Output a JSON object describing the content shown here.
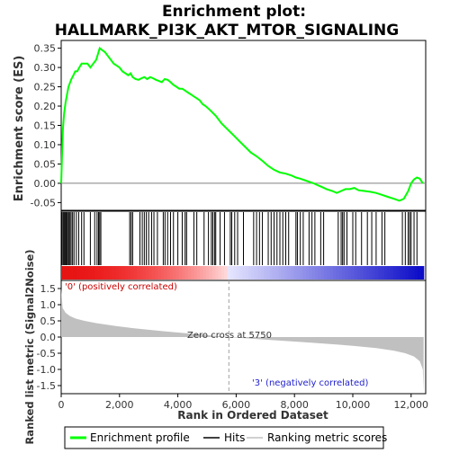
{
  "chart_data": {
    "type": "line",
    "title_line1": "Enrichment plot:",
    "title_line2": "HALLMARK_PI3K_AKT_MTOR_SIGNALING",
    "top_panel": {
      "ylabel": "Enrichment score (ES)",
      "ylim": [
        -0.07,
        0.37
      ],
      "yticks": [
        "0.35",
        "0.30",
        "0.25",
        "0.20",
        "0.15",
        "0.10",
        "0.05",
        "0.00",
        "-0.05"
      ],
      "ytick_values": [
        0.35,
        0.3,
        0.25,
        0.2,
        0.15,
        0.1,
        0.05,
        0.0,
        -0.05
      ],
      "series": [
        {
          "name": "Enrichment profile",
          "color": "#00ff00",
          "x": [
            0,
            30,
            60,
            100,
            150,
            200,
            250,
            300,
            350,
            420,
            480,
            550,
            620,
            700,
            800,
            900,
            1000,
            1100,
            1200,
            1280,
            1320,
            1400,
            1500,
            1600,
            1700,
            1800,
            1900,
            2000,
            2100,
            2200,
            2300,
            2380,
            2450,
            2550,
            2650,
            2750,
            2850,
            2950,
            3050,
            3150,
            3250,
            3350,
            3450,
            3550,
            3650,
            3750,
            3850,
            3950,
            4050,
            4150,
            4250,
            4350,
            4450,
            4550,
            4650,
            4750,
            4850,
            4950,
            5100,
            5300,
            5500,
            5700,
            5900,
            6100,
            6300,
            6500,
            6700,
            6900,
            7100,
            7300,
            7500,
            7700,
            7900,
            8050,
            8200,
            8350,
            8500,
            8650,
            8800,
            8950,
            9100,
            9300,
            9450,
            9600,
            9750,
            9900,
            10050,
            10200,
            10400,
            10600,
            10800,
            11000,
            11200,
            11400,
            11600,
            11750,
            11900,
            12000,
            12100,
            12200,
            12300,
            12400
          ],
          "y": [
            0.0,
            0.08,
            0.14,
            0.18,
            0.21,
            0.23,
            0.25,
            0.26,
            0.27,
            0.28,
            0.29,
            0.29,
            0.3,
            0.31,
            0.31,
            0.31,
            0.3,
            0.31,
            0.32,
            0.34,
            0.35,
            0.345,
            0.34,
            0.33,
            0.32,
            0.31,
            0.305,
            0.3,
            0.29,
            0.285,
            0.28,
            0.285,
            0.275,
            0.27,
            0.268,
            0.272,
            0.275,
            0.27,
            0.275,
            0.272,
            0.268,
            0.265,
            0.262,
            0.27,
            0.268,
            0.262,
            0.255,
            0.25,
            0.245,
            0.245,
            0.24,
            0.235,
            0.23,
            0.225,
            0.22,
            0.215,
            0.205,
            0.2,
            0.19,
            0.175,
            0.155,
            0.14,
            0.125,
            0.11,
            0.095,
            0.08,
            0.07,
            0.058,
            0.045,
            0.035,
            0.028,
            0.025,
            0.02,
            0.015,
            0.012,
            0.008,
            0.004,
            0.0,
            -0.005,
            -0.01,
            -0.015,
            -0.02,
            -0.025,
            -0.02,
            -0.015,
            -0.015,
            -0.012,
            -0.018,
            -0.02,
            -0.022,
            -0.025,
            -0.03,
            -0.035,
            -0.04,
            -0.045,
            -0.04,
            -0.02,
            0.0,
            0.01,
            0.015,
            0.012,
            0.0
          ]
        }
      ]
    },
    "bottom_panel": {
      "ylabel": "Ranked list metric (Signal2Noise)",
      "ylim": [
        -1.75,
        1.75
      ],
      "yticks": [
        "1.5",
        "1.0",
        "0.5",
        "0.0",
        "-0.5",
        "-1.0",
        "-1.5"
      ],
      "ytick_values": [
        1.5,
        1.0,
        0.5,
        0.0,
        -0.5,
        -1.0,
        -1.5
      ],
      "metric_series": {
        "name": "Ranking metric scores",
        "color": "#c0c0c0",
        "x": [
          0,
          50,
          150,
          300,
          500,
          800,
          1200,
          1800,
          2500,
          3500,
          4500,
          5750,
          7000,
          8000,
          9000,
          10000,
          10800,
          11400,
          11800,
          12100,
          12300,
          12400,
          12430
        ],
        "y": [
          1.5,
          0.9,
          0.75,
          0.65,
          0.57,
          0.5,
          0.43,
          0.35,
          0.27,
          0.18,
          0.1,
          0.0,
          -0.08,
          -0.14,
          -0.2,
          -0.27,
          -0.34,
          -0.42,
          -0.5,
          -0.6,
          -0.75,
          -1.0,
          -1.7
        ]
      },
      "zero_cross_label": "Zero cross at 5750",
      "zero_cross_x": 5750,
      "positive_label": "'0' (positively correlated)",
      "negative_label": "'3' (negatively correlated)"
    },
    "hits": {
      "name": "Hits",
      "x": [
        30,
        70,
        100,
        130,
        160,
        190,
        220,
        260,
        300,
        340,
        390,
        440,
        520,
        600,
        700,
        780,
        1000,
        1150,
        1230,
        1280,
        1320,
        1360,
        2350,
        2400,
        2450,
        2700,
        2780,
        2850,
        2920,
        3000,
        3100,
        3180,
        3300,
        3500,
        3560,
        3650,
        3750,
        3850,
        4000,
        4150,
        4250,
        4300,
        4550,
        4650,
        4900,
        5050,
        5150,
        5200,
        5260,
        5300,
        5450,
        5600,
        5800,
        5850,
        5950,
        6050,
        6250,
        6600,
        6700,
        6800,
        6900,
        7100,
        7200,
        7300,
        7400,
        7500,
        7600,
        7700,
        7800,
        8050,
        8100,
        8200,
        8300,
        8500,
        8600,
        8700,
        8900,
        9000,
        9500,
        9600,
        9650,
        9700,
        9800,
        10000,
        10100,
        10300,
        10500,
        10650,
        10800,
        11000,
        11100,
        11700,
        11800,
        11900,
        11950,
        12000,
        12100,
        12200
      ],
      "color": "#000000"
    },
    "xaxis": {
      "label": "Rank in Ordered Dataset",
      "xlim": [
        0,
        12500
      ],
      "ticks": [
        "0",
        "2,000",
        "4,000",
        "6,000",
        "8,000",
        "10,000",
        "12,000"
      ],
      "tick_values": [
        0,
        2000,
        4000,
        6000,
        8000,
        10000,
        12000
      ]
    },
    "legend": {
      "items": [
        {
          "label": "Enrichment profile",
          "color": "#00ff00"
        },
        {
          "label": "Hits",
          "color": "#000000"
        },
        {
          "label": "Ranking metric scores",
          "color": "#c0c0c0"
        }
      ],
      "placement": "bottom"
    }
  }
}
